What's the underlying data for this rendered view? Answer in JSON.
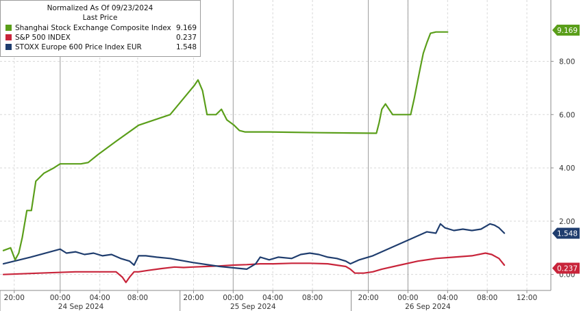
{
  "chart_data": {
    "type": "line",
    "legend": {
      "title": "Normalized As Of 09/23/2024",
      "subtitle": "Last Price",
      "placement": "top-left"
    },
    "x_ticks": [
      "20:00",
      "00:00",
      "04:00",
      "08:00",
      "20:00",
      "00:00",
      "04:00",
      "08:00",
      "20:00",
      "00:00",
      "04:00",
      "08:00",
      "12:00"
    ],
    "day_labels": [
      "24 Sep 2024",
      "25 Sep 2024",
      "26 Sep 2024"
    ],
    "y_ticks": [
      "0.00",
      "2.00",
      "4.00",
      "6.00",
      "8.00"
    ],
    "ylim": [
      -0.6,
      10.3
    ],
    "grid": true,
    "series": [
      {
        "name": "Shanghai Stock Exchange Composite Index",
        "last_value": "9.169",
        "color": "#5a9e1a",
        "x": [
          0,
          0.8,
          1.3,
          1.7,
          2.1,
          2.6,
          3.1,
          3.6,
          4.5,
          5.6,
          6.3,
          7.0,
          7.9,
          8.6,
          9.4,
          10.5,
          12.5,
          15.0,
          18.5,
          21.2,
          21.6,
          22.1,
          22.6,
          23.0,
          23.6,
          24.2,
          24.8,
          25.6,
          26.2,
          26.8,
          27.2,
          27.6,
          28.0,
          28.5,
          29.5,
          35.0,
          41.4,
          41.7,
          42.0,
          42.4,
          42.8,
          43.2,
          44.0,
          45.2,
          45.6,
          46.0,
          46.3,
          46.6,
          47.0,
          47.4,
          48.0,
          48.8,
          49.3
        ],
        "y": [
          0.9,
          1.0,
          0.55,
          0.8,
          1.4,
          2.4,
          2.4,
          3.5,
          3.8,
          4.0,
          4.15,
          4.15,
          4.15,
          4.15,
          4.2,
          4.5,
          5.0,
          5.6,
          6.0,
          7.1,
          7.3,
          6.9,
          6.0,
          6.0,
          6.0,
          6.2,
          5.8,
          5.6,
          5.4,
          5.35,
          5.35,
          5.35,
          5.35,
          5.35,
          5.35,
          5.32,
          5.3,
          5.7,
          6.2,
          6.4,
          6.2,
          6.0,
          6.0,
          6.0,
          6.6,
          7.3,
          7.8,
          8.3,
          8.7,
          9.05,
          9.1,
          9.1,
          9.1
        ]
      },
      {
        "name": "S&P 500 INDEX",
        "last_value": "0.237",
        "color": "#c8243a",
        "x": [
          0,
          4,
          8,
          12.5,
          13.2,
          13.6,
          14.0,
          14.5,
          15.0,
          16.0,
          17.5,
          19.0,
          20.0,
          21.0,
          22.5,
          24.0,
          25.5,
          27.0,
          28.5,
          30.0,
          32.0,
          34.0,
          36.0,
          38.0,
          38.5,
          39.0,
          40.0,
          41.0,
          42.0,
          44.0,
          46.0,
          48.0,
          50.0,
          52.0,
          53.5,
          54.2,
          55.0,
          55.6
        ],
        "y": [
          0.0,
          0.05,
          0.1,
          0.1,
          -0.1,
          -0.3,
          -0.1,
          0.1,
          0.1,
          0.15,
          0.22,
          0.28,
          0.26,
          0.28,
          0.3,
          0.32,
          0.35,
          0.37,
          0.4,
          0.4,
          0.42,
          0.42,
          0.4,
          0.3,
          0.2,
          0.05,
          0.05,
          0.1,
          0.2,
          0.35,
          0.5,
          0.6,
          0.65,
          0.7,
          0.8,
          0.75,
          0.6,
          0.35
        ]
      },
      {
        "name": "STOXX Europe 600 Price Index EUR",
        "last_value": "1.548",
        "color": "#1f3d6e",
        "x": [
          0,
          3,
          6.3,
          7.0,
          8.0,
          9.0,
          10.0,
          11.0,
          12.0,
          13.0,
          14.0,
          14.5,
          15.0,
          15.8,
          17.0,
          18.5,
          21.0,
          24.0,
          27.0,
          28.0,
          28.5,
          29.5,
          30.5,
          32.0,
          33.0,
          34.0,
          35.0,
          36.0,
          37.0,
          38.0,
          38.5,
          39.5,
          41.0,
          44.0,
          47.0,
          48.0,
          48.5,
          49.0,
          50.0,
          51.0,
          52.0,
          53.0,
          54.0,
          54.5,
          55.0,
          55.6
        ],
        "y": [
          0.4,
          0.65,
          0.95,
          0.8,
          0.85,
          0.75,
          0.8,
          0.7,
          0.75,
          0.6,
          0.5,
          0.35,
          0.7,
          0.7,
          0.65,
          0.6,
          0.45,
          0.3,
          0.2,
          0.4,
          0.65,
          0.55,
          0.65,
          0.6,
          0.75,
          0.8,
          0.75,
          0.65,
          0.6,
          0.5,
          0.4,
          0.55,
          0.7,
          1.15,
          1.6,
          1.55,
          1.9,
          1.75,
          1.65,
          1.7,
          1.65,
          1.7,
          1.9,
          1.85,
          1.75,
          1.55
        ]
      }
    ]
  }
}
